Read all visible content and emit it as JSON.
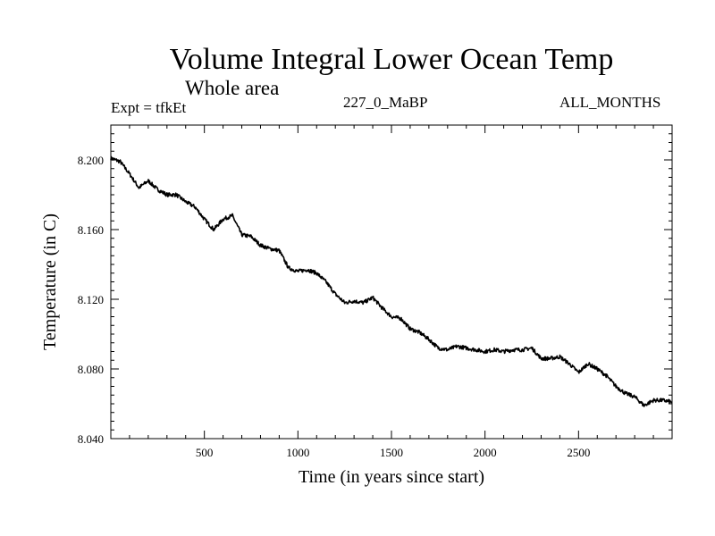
{
  "header": {
    "title": "Volume Integral Lower Ocean Temp",
    "subtitle": "Whole area",
    "expt_label": "Expt = tfkEt",
    "experiment": "227_0_MaBP",
    "months": "ALL_MONTHS"
  },
  "chart_data": {
    "type": "line",
    "title": "Volume Integral Lower Ocean Temp",
    "subtitle": "Whole area",
    "xlabel": "Time (in years since start)",
    "ylabel": "Temperature (in C)",
    "xlim": [
      0,
      3000
    ],
    "ylim": [
      8.04,
      8.22
    ],
    "xticks": [
      500,
      1000,
      1500,
      2000,
      2500
    ],
    "xtick_labels": [
      "500",
      "1000",
      "1500",
      "2000",
      "2500"
    ],
    "yticks": [
      8.04,
      8.08,
      8.12,
      8.16,
      8.2
    ],
    "ytick_labels": [
      "8.040",
      "8.080",
      "8.120",
      "8.160",
      "8.200"
    ],
    "grid": false,
    "series": [
      {
        "color": "#000000",
        "x": [
          0,
          50,
          100,
          150,
          200,
          250,
          300,
          350,
          400,
          450,
          500,
          550,
          600,
          650,
          700,
          750,
          800,
          850,
          900,
          950,
          1000,
          1050,
          1100,
          1150,
          1200,
          1250,
          1300,
          1350,
          1400,
          1450,
          1500,
          1550,
          1600,
          1650,
          1700,
          1750,
          1800,
          1850,
          1900,
          1950,
          2000,
          2050,
          2100,
          2150,
          2200,
          2250,
          2300,
          2350,
          2400,
          2450,
          2500,
          2550,
          2600,
          2650,
          2700,
          2750,
          2800,
          2850,
          2900,
          2950,
          3000
        ],
        "values": [
          8.201,
          8.199,
          8.192,
          8.184,
          8.188,
          8.183,
          8.18,
          8.18,
          8.176,
          8.173,
          8.166,
          8.16,
          8.166,
          8.168,
          8.157,
          8.156,
          8.151,
          8.149,
          8.148,
          8.138,
          8.136,
          8.137,
          8.135,
          8.13,
          8.123,
          8.118,
          8.119,
          8.118,
          8.121,
          8.115,
          8.11,
          8.109,
          8.103,
          8.101,
          8.097,
          8.092,
          8.091,
          8.093,
          8.092,
          8.091,
          8.09,
          8.091,
          8.09,
          8.091,
          8.091,
          8.092,
          8.086,
          8.086,
          8.087,
          8.083,
          8.078,
          8.083,
          8.08,
          8.076,
          8.07,
          8.066,
          8.064,
          8.059,
          8.062,
          8.062,
          8.061
        ]
      }
    ]
  }
}
